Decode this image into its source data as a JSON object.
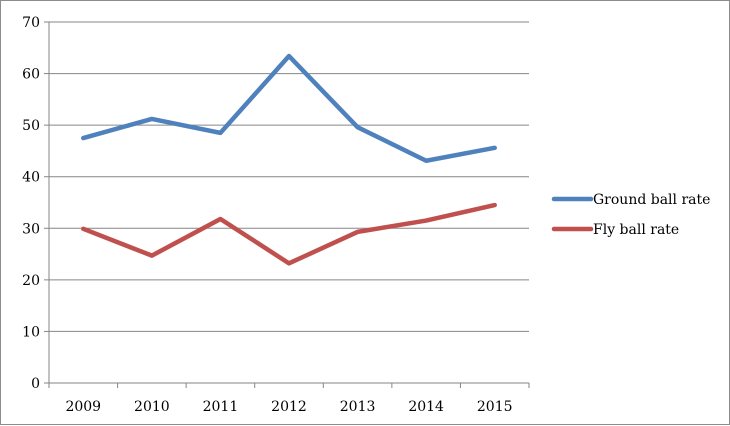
{
  "chart_data": {
    "type": "line",
    "title": "",
    "xlabel": "",
    "ylabel": "",
    "categories": [
      "2009",
      "2010",
      "2011",
      "2012",
      "2013",
      "2014",
      "2015"
    ],
    "ylim": [
      0,
      70
    ],
    "yticks": [
      0,
      10,
      20,
      30,
      40,
      50,
      60,
      70
    ],
    "grid": true,
    "legend_position": "right",
    "series": [
      {
        "name": "Ground ball rate",
        "color": "#4f81bd",
        "values": [
          47.5,
          51.2,
          48.5,
          63.4,
          49.6,
          43.1,
          45.6
        ]
      },
      {
        "name": "Fly ball rate",
        "color": "#c0504d",
        "values": [
          29.9,
          24.7,
          31.8,
          23.2,
          29.3,
          31.5,
          34.5
        ]
      }
    ]
  }
}
